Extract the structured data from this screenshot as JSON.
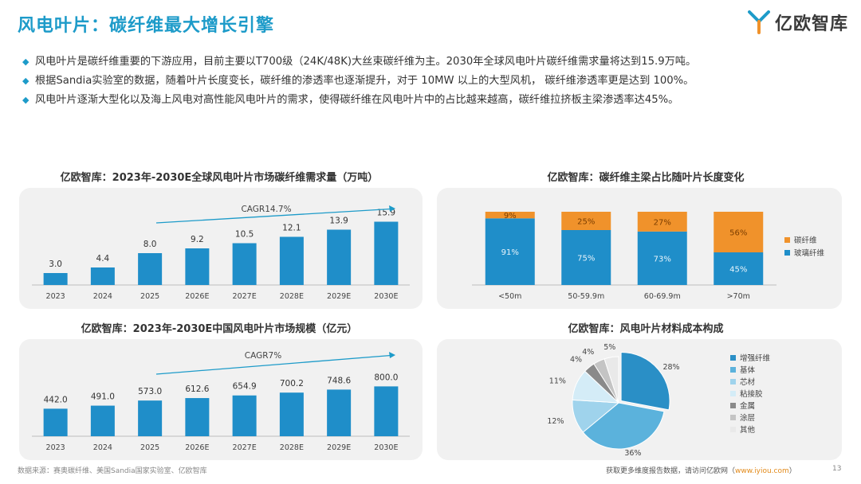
{
  "page": {
    "title": "风电叶片：碳纤维最大增长引擎",
    "logo_text": "亿欧智库",
    "bullets": [
      "风电叶片是碳纤维重要的下游应用，目前主要以T700级（24K/48K)大丝束碳纤维为主。2030年全球风电叶片碳纤维需求量将达到15.9万吨。",
      "根据Sandia实验室的数据，随着叶片长度变长，碳纤维的渗透率也逐渐提升，对于 10MW 以上的大型风机， 碳纤维渗透率更是达到 100%。",
      "风电叶片逐渐大型化以及海上风电对高性能风电叶片的需求，使得碳纤维在风电叶片中的占比越来越高，碳纤维拉挤板主梁渗透率达45%。"
    ],
    "footer_source": "数据来源：赛奥碳纤维、美国Sandia国家实验室、亿欧智库",
    "footer_right_prefix": "获取更多维度报告数据，请访问亿欧网（",
    "footer_link": "www.iyiou.com",
    "footer_right_suffix": "）",
    "page_number": "13",
    "accent_color": "#1d9bc9",
    "orange_color": "#f0922b"
  },
  "chart_data": [
    {
      "type": "bar",
      "title": "亿欧智库：2023年-2030E全球风电叶片市场碳纤维需求量（万吨）",
      "categories": [
        "2023",
        "2024",
        "2025",
        "2026E",
        "2027E",
        "2028E",
        "2029E",
        "2030E"
      ],
      "values": [
        3.0,
        4.4,
        8.0,
        9.2,
        10.5,
        12.1,
        13.9,
        15.9
      ],
      "value_labels": [
        "3.0",
        "4.4",
        "8.0",
        "9.2",
        "10.5",
        "12.1",
        "13.9",
        "15.9"
      ],
      "annotation": "CAGR14.7%",
      "ylim": [
        0,
        18
      ],
      "color": "#1f8ec9"
    },
    {
      "type": "bar",
      "stacked": true,
      "title": "亿欧智库：碳纤维主梁占比随叶片长度变化",
      "categories": [
        "<50m",
        "50-59.9m",
        "60-69.9m",
        ">70m"
      ],
      "series": [
        {
          "name": "玻璃纤维",
          "values": [
            91,
            75,
            73,
            45
          ],
          "labels": [
            "91%",
            "75%",
            "73%",
            "45%"
          ],
          "color": "#1f8ec9"
        },
        {
          "name": "碳纤维",
          "values": [
            9,
            25,
            27,
            56
          ],
          "labels": [
            "9%",
            "25%",
            "27%",
            "56%"
          ],
          "color": "#f0922b"
        }
      ],
      "ylim": [
        0,
        100
      ],
      "legend": "right"
    },
    {
      "type": "bar",
      "title": "亿欧智库：2023年-2030E中国风电叶片市场规模（亿元）",
      "categories": [
        "2023",
        "2024",
        "2025",
        "2026E",
        "2027E",
        "2028E",
        "2029E",
        "2030E"
      ],
      "values": [
        442.0,
        491.0,
        573.0,
        612.6,
        654.9,
        700.2,
        748.6,
        800.0
      ],
      "value_labels": [
        "442.0",
        "491.0",
        "573.0",
        "612.6",
        "654.9",
        "700.2",
        "748.6",
        "800.0"
      ],
      "annotation": "CAGR7%",
      "ylim": [
        0,
        1150
      ],
      "color": "#1f8ec9"
    },
    {
      "type": "pie",
      "title": "亿欧智库：风电叶片材料成本构成",
      "slices": [
        {
          "name": "增强纤维",
          "value": 28,
          "label": "28%",
          "color": "#2a8fc6"
        },
        {
          "name": "基体",
          "value": 36,
          "label": "36%",
          "color": "#5bb2dc"
        },
        {
          "name": "芯材",
          "value": 12,
          "label": "12%",
          "color": "#9fd3ec"
        },
        {
          "name": "粘接胶",
          "value": 11,
          "label": "11%",
          "color": "#d4ecf7"
        },
        {
          "name": "金属",
          "value": 4,
          "label": "4%",
          "color": "#8a8a8a"
        },
        {
          "name": "涂层",
          "value": 4,
          "label": "4%",
          "color": "#c4c4c4"
        },
        {
          "name": "其他",
          "value": 5,
          "label": "5%",
          "color": "#e9e9e9"
        }
      ],
      "legend": "right"
    }
  ]
}
